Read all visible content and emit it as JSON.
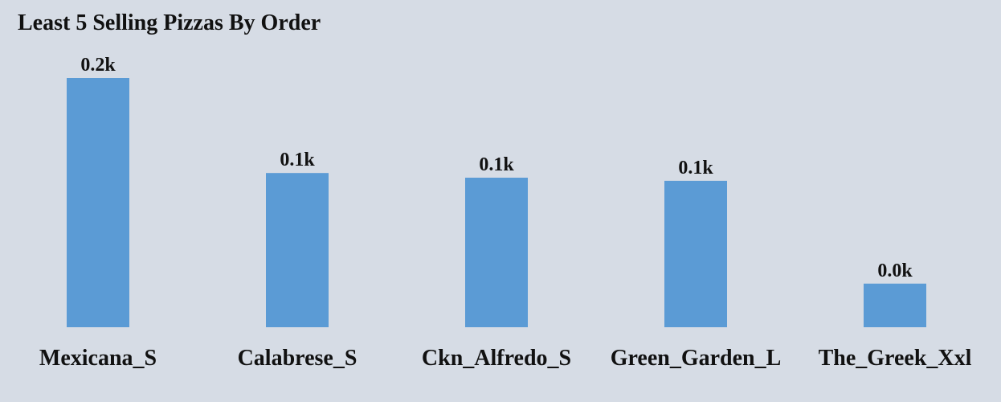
{
  "chart_data": {
    "type": "bar",
    "title": "Least 5 Selling Pizzas By Order",
    "categories": [
      "Mexicana_S",
      "Calabrese_S",
      "Ckn_Alfredo_S",
      "Green_Garden_L",
      "The_Greek_Xxl"
    ],
    "values": [
      160,
      99,
      96,
      94,
      28
    ],
    "data_labels": [
      "0.2k",
      "0.1k",
      "0.1k",
      "0.1k",
      "0.0k"
    ],
    "xlabel": "",
    "ylabel": "",
    "ylim": [
      0,
      160
    ],
    "grid": false,
    "legend": "none",
    "bar_color": "#5b9bd5",
    "background_color": "#d6dce5"
  }
}
